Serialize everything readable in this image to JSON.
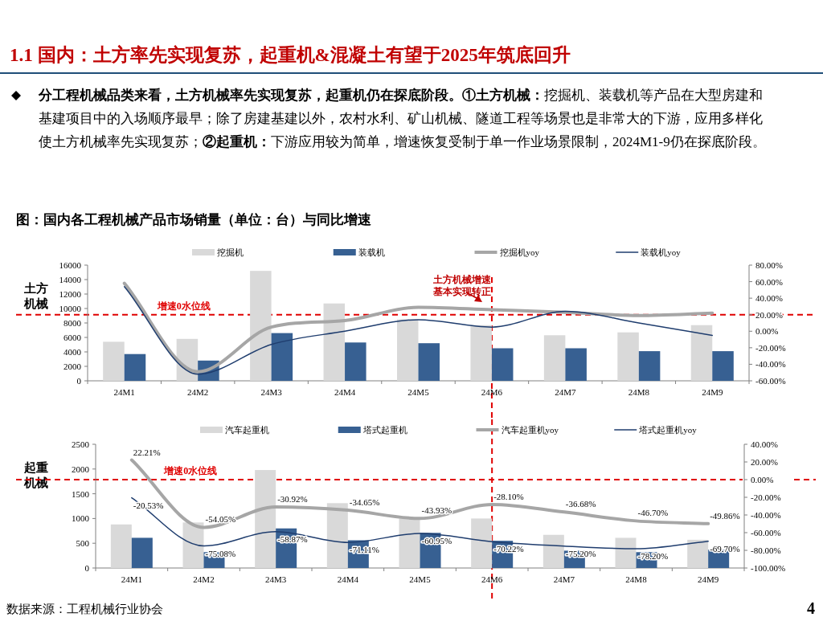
{
  "chart_data": [
    {
      "type": "bar",
      "title": "1.1 国内：土方率先实现复苏，起重机&混凝土有望于2025年筑底回升",
      "subtitle": "图：国内各工程机械产品市场销量（单位：台）与同比增速",
      "ylabel": "土方机械",
      "categories": [
        "24M1",
        "24M2",
        "24M3",
        "24M4",
        "24M5",
        "24M6",
        "24M7",
        "24M8",
        "24M9"
      ],
      "series": [
        {
          "name": "挖掘机",
          "color": "#d9d9d9",
          "values": [
            5400,
            5800,
            15200,
            10700,
            8500,
            7700,
            6300,
            6700,
            7700
          ]
        },
        {
          "name": "装载机",
          "color": "#376092",
          "values": [
            3700,
            2800,
            6600,
            5300,
            5200,
            4500,
            4500,
            4100,
            4100
          ]
        },
        {
          "name": "挖掘机yoy",
          "type": "line",
          "axis": "y2",
          "color": "#a6a6a6",
          "values": [
            58,
            -49,
            5,
            13,
            29,
            26,
            23,
            19,
            22
          ]
        },
        {
          "name": "装载机yoy",
          "type": "line",
          "axis": "y2",
          "color": "#1f3d6e",
          "values": [
            54,
            -52,
            -16,
            0,
            14,
            5,
            24,
            10,
            -5
          ]
        }
      ],
      "ylim": [
        0,
        16000
      ],
      "yticks": [
        0,
        2000,
        4000,
        6000,
        8000,
        10000,
        12000,
        14000,
        16000
      ],
      "y2lim": [
        -60,
        80
      ],
      "y2ticks": [
        {
          "value": -60,
          "label": "-60.00%"
        },
        {
          "value": -40,
          "label": "-40.00%"
        },
        {
          "value": -20,
          "label": "-20.00%"
        },
        {
          "value": 0,
          "label": "0.00%"
        },
        {
          "value": 20,
          "label": "20.00%"
        },
        {
          "value": 40,
          "label": "40.00%"
        },
        {
          "value": 60,
          "label": "60.00%"
        },
        {
          "value": 80,
          "label": "80.00%"
        }
      ],
      "legend": "top",
      "ref_lines": [
        {
          "axis": "y2",
          "value": 20,
          "label": "增速0水位线",
          "color": "#e00000",
          "line_style": "dashed"
        },
        {
          "axis": "x",
          "value": "24M6",
          "color": "#e00000",
          "line_style": "dashed"
        }
      ],
      "annotations": [
        "**分工程机械品类来看，土方机械率先实现复苏，起重机仍在探底阶段。①土方机械：**挖掘机、装载机等产品在大型房建和基建项目中的入场顺序最早；除了房建基建以外，农村水利、矿山机械、隧道工程等场景也是非常大的下游，应用多样化使土方机械率先实现复苏；**②起重机：**下游应用较为简单，增速恢复受制于单一作业场景限制，2024M1-9仍在探底阶段。",
        "土方机械增速基本实现转正"
      ]
    },
    {
      "type": "bar",
      "ylabel": "起重机械",
      "categories": [
        "24M1",
        "24M2",
        "24M3",
        "24M4",
        "24M5",
        "24M6",
        "24M7",
        "24M8",
        "24M9"
      ],
      "series": [
        {
          "name": "汽车起重机",
          "color": "#d9d9d9",
          "values": [
            880,
            920,
            1980,
            1310,
            1000,
            1000,
            670,
            610,
            570
          ]
        },
        {
          "name": "塔式起重机",
          "color": "#376092",
          "values": [
            610,
            320,
            800,
            560,
            710,
            550,
            350,
            320,
            370
          ]
        },
        {
          "name": "汽车起重机yoy",
          "type": "line",
          "axis": "y2",
          "color": "#a6a6a6",
          "values": [
            22.21,
            -54.05,
            -30.92,
            -34.65,
            -43.93,
            -28.1,
            -36.68,
            -46.7,
            -49.86
          ],
          "value_labels": [
            "22.21%",
            "-54.05%",
            "-30.92%",
            "-34.65%",
            "-43.93%",
            "-28.10%",
            "-36.68%",
            "-46.70%",
            "-49.86%"
          ]
        },
        {
          "name": "塔式起重机yoy",
          "type": "line",
          "axis": "y2",
          "color": "#1f3d6e",
          "values": [
            -20.53,
            -75.08,
            -58.87,
            -71.11,
            -60.95,
            -70.22,
            -75.2,
            -78.2,
            -69.7
          ],
          "value_labels": [
            "-20.53%",
            "-75.08%",
            "-58.87%",
            "-71.11%",
            "-60.95%",
            "-70.22%",
            "-75.20%",
            "-78.20%",
            "-69.70%"
          ]
        }
      ],
      "ylim": [
        0,
        2500
      ],
      "yticks": [
        0,
        500,
        1000,
        1500,
        2000,
        2500
      ],
      "y2lim": [
        -100,
        40
      ],
      "y2ticks": [
        {
          "value": -100,
          "label": "-100.00%"
        },
        {
          "value": -80,
          "label": "-80.00%"
        },
        {
          "value": -60,
          "label": "-60.00%"
        },
        {
          "value": -40,
          "label": "-40.00%"
        },
        {
          "value": -20,
          "label": "-20.00%"
        },
        {
          "value": 0,
          "label": "0.00%"
        },
        {
          "value": 20,
          "label": "20.00%"
        },
        {
          "value": 40,
          "label": "40.00%"
        }
      ],
      "legend": "top",
      "ref_lines": [
        {
          "axis": "y2",
          "value": 0,
          "label": "增速0水位线",
          "color": "#e00000",
          "line_style": "dashed"
        },
        {
          "axis": "x",
          "value": "24M6",
          "color": "#e00000",
          "line_style": "dashed"
        }
      ],
      "annotations": [
        "数据来源：工程机械行业协会",
        "4"
      ]
    }
  ]
}
